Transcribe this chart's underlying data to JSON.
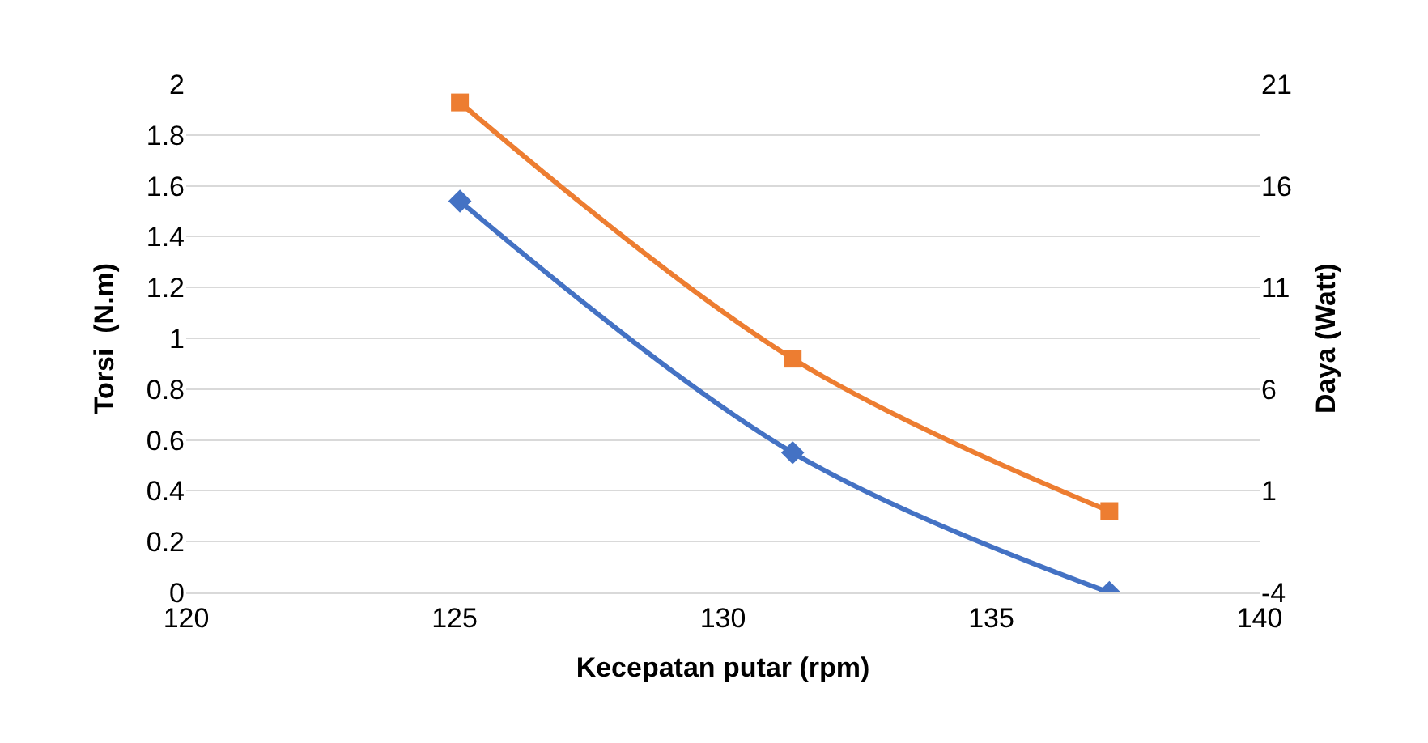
{
  "chart_data": {
    "type": "line",
    "xlabel": "Kecepatan putar (rpm)",
    "ylabel": "Torsi  (N.m)",
    "y2label": "Daya (Watt)",
    "series": [
      {
        "x": [
          125.1,
          131.3,
          137.2
        ],
        "values": [
          1.54,
          0.55,
          0
        ],
        "color": "#4472c4",
        "marker": "diamond"
      },
      {
        "x": [
          125.1,
          131.3,
          137.2
        ],
        "values": [
          20.1,
          7.5,
          0
        ],
        "color": "#ed7d31",
        "marker": "square",
        "axis": "y2"
      }
    ],
    "xlim": [
      120,
      140
    ],
    "xticks": [
      120,
      125,
      130,
      135,
      140
    ],
    "ylim": [
      0,
      2
    ],
    "yticks": [
      0,
      0.2,
      0.4,
      0.6,
      0.8,
      1,
      1.2,
      1.4,
      1.6,
      1.8,
      2
    ],
    "y2lim": [
      -4,
      21
    ],
    "y2ticks": [
      -4,
      1,
      6,
      11,
      16,
      21
    ],
    "grid": "y"
  }
}
